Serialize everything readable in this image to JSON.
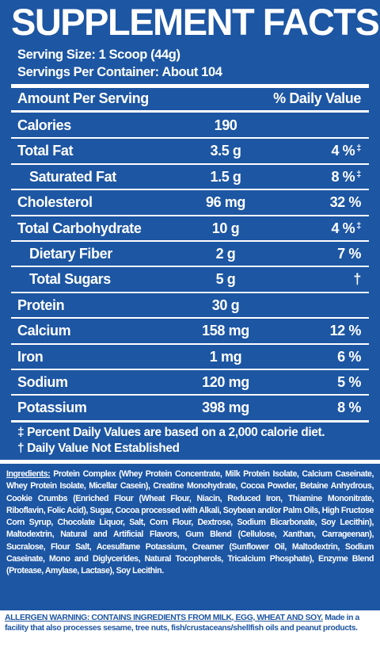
{
  "header": {
    "title": "SUPPLEMENT FACTS",
    "serving_size": "Serving Size: 1 Scoop (44g)",
    "servings_per_container": "Servings Per Container: About 104"
  },
  "table": {
    "header": [
      "Amount Per Serving",
      "% Daily Value"
    ],
    "rows": [
      {
        "name": "Calories",
        "amount": "190"
      },
      {
        "name": "Total Fat",
        "amount": "3.5 g",
        "dv": "4 %",
        "mark": "‡"
      },
      {
        "name": "Saturated Fat",
        "amount": "1.5 g",
        "dv": "8 %",
        "mark": "‡",
        "indent": true
      },
      {
        "name": "Cholesterol",
        "amount": "96 mg",
        "dv": "32 %"
      },
      {
        "name": "Total Carbohydrate",
        "amount": "10 g",
        "dv": "4 %",
        "mark": "‡"
      },
      {
        "name": "Dietary Fiber",
        "amount": "2 g",
        "dv": "7 %",
        "indent": true
      },
      {
        "name": "Total Sugars",
        "amount": "5 g",
        "dv": "†",
        "indent": true
      },
      {
        "name": "Protein",
        "amount": "30 g"
      },
      {
        "name": "Calcium",
        "amount": "158 mg",
        "dv": "12 %"
      },
      {
        "name": "Iron",
        "amount": "1 mg",
        "dv": "6 %"
      },
      {
        "name": "Sodium",
        "amount": "120 mg",
        "dv": "5 %"
      },
      {
        "name": "Potassium",
        "amount": "398 mg",
        "dv": "8 %"
      }
    ]
  },
  "footnotes": [
    "‡ Percent Daily Values are based on a 2,000 calorie diet.",
    "† Daily Value Not Established"
  ],
  "ingredients": {
    "label": "Ingredients:",
    "text": "Protein Complex (Whey Protein Concentrate, Milk Protein Isolate, Calcium Caseinate, Whey Protein Isolate, Micellar Casein), Creatine Monohydrate, Cocoa Powder, Betaine Anhydrous, Cookie Crumbs (Enriched Flour (Wheat Flour, Niacin, Reduced Iron, Thiamine Mononitrate, Riboflavin, Folic Acid), Sugar, Cocoa processed with Alkali, Soybean and/or Palm Oils, High Fructose Corn Syrup, Chocolate Liquor, Salt, Corn Flour, Dextrose, Sodium Bicarbonate, Soy Lecithin), Maltodextrin, Natural and Artificial Flavors, Gum Blend (Cellulose, Xanthan, Carrageenan), Sucralose, Flour Salt, Acesulfame Potassium, Creamer (Sunflower Oil, Maltodextrin, Sodium Caseinate, Mono and Diglycerides, Natural Tocopherols, Tricalcium Phosphate), Enzyme Blend (Protease, Amylase, Lactase), Soy Lecithin."
  },
  "allergen": {
    "warning": "ALLERGEN WARNING: CONTAINS INGREDIENTS FROM MILK, EGG, WHEAT AND SOY.",
    "note": "Made in a facility that also processes sesame, tree nuts, fish/crustaceans/shellfish oils and peanut products."
  }
}
